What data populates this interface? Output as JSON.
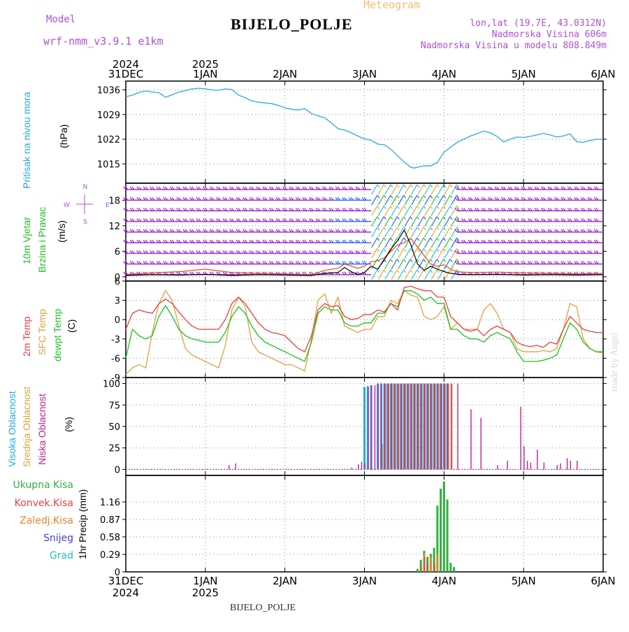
{
  "header": {
    "model_label": "Model",
    "model_name": "wrf-nmm_v3.9.1 e1km",
    "meteogram_label": "Meteogram",
    "station": "BIJELO_POLJE",
    "lonlat": "lon,lat (19.7E, 43.0312N)",
    "altitude": "Nadmorska Visina 606m",
    "model_altitude": "Nadmorska Visina u modelu 808.849m",
    "made_by": "made by Angel",
    "bottom_station": "BIJELO_POLJE"
  },
  "time_axis": {
    "top_years": [
      "2024",
      "2025"
    ],
    "bottom_years": [
      "2024",
      "2025"
    ],
    "days": [
      "31DEC",
      "1JAN",
      "2JAN",
      "3JAN",
      "4JAN",
      "5JAN",
      "6JAN"
    ]
  },
  "colors": {
    "pressure": "#29a9e6",
    "wind_barb": "#a020d0",
    "wind_blue": "#3060ff",
    "wind_green": "#30c030",
    "wind_orange": "#f0a030",
    "wind_cyan": "#20c0e0",
    "wind_speed_line": "#000000",
    "gust": "#e05020",
    "temp_2m": "#e84040",
    "temp_sfc": "#e0a040",
    "temp_dew": "#20c020",
    "cloud_high": "#29a9e6",
    "cloud_mid": "#e0a040",
    "cloud_low": "#c02090",
    "precip_total": "#30b040",
    "precip_conv": "#e84040",
    "precip_strat": "#f08030",
    "precip_snow": "#4040d0",
    "precip_hail": "#20c0c0",
    "grid": "#8a8a8a"
  },
  "chart_data": [
    {
      "type": "line",
      "panel": "pressure",
      "ylabel_main": "Pritisak na nivou mora",
      "unit": "(hPa)",
      "yticks": [
        1015,
        1022,
        1029,
        1036
      ],
      "ylim": [
        1009.5,
        1038.5
      ],
      "grid": true,
      "series": [
        {
          "name": "",
          "x": [
            0,
            2,
            4,
            6,
            8,
            10,
            12,
            14,
            16,
            18,
            20,
            22,
            24,
            26,
            28,
            30,
            32,
            34,
            36,
            38,
            40,
            42,
            44,
            46,
            48,
            50,
            52,
            54,
            56,
            58,
            60,
            62,
            64,
            66,
            68,
            70,
            72,
            74,
            76,
            78,
            80,
            82,
            84,
            86,
            87,
            88,
            90,
            92,
            94,
            96,
            98,
            100,
            102,
            104,
            106,
            108,
            110,
            112,
            114,
            116,
            118,
            120,
            122,
            124,
            126,
            128,
            130,
            132,
            134,
            136,
            138,
            140,
            142,
            144
          ],
          "y": [
            1034.1,
            1034.5,
            1035.3,
            1035.7,
            1035.4,
            1035.2,
            1033.9,
            1034.6,
            1035.4,
            1035.8,
            1036.3,
            1036.5,
            1036.3,
            1036.0,
            1035.9,
            1036.3,
            1036.1,
            1034.5,
            1033.8,
            1032.9,
            1032.5,
            1032.3,
            1032.1,
            1031.6,
            1030.9,
            1030.5,
            1030.3,
            1030.7,
            1029.3,
            1028.6,
            1028.1,
            1026.6,
            1025.0,
            1024.6,
            1023.8,
            1022.9,
            1022.1,
            1021.7,
            1020.6,
            1020.4,
            1019.1,
            1017.3,
            1015.5,
            1014.0,
            1013.8,
            1014.0,
            1014.4,
            1014.4,
            1015.4,
            1018.3,
            1019.7,
            1021.1,
            1022.0,
            1022.9,
            1023.6,
            1024.3,
            1023.8,
            1022.8,
            1021.2,
            1022.0,
            1022.6,
            1022.5,
            1022.8,
            1023.2,
            1023.6,
            1023.2,
            1022.6,
            1022.9,
            1023.5,
            1021.3,
            1021.1,
            1021.6,
            1022.0,
            1022.0
          ]
        }
      ]
    },
    {
      "type": "line",
      "panel": "wind",
      "ylabel_main": "10m Vjetar",
      "ylabel_sub": "Brzina i Pravac",
      "unit": "(m/s)",
      "compass": {
        "n": "N",
        "s": "S",
        "w": "W",
        "e": "E"
      },
      "yticks": [
        0,
        6,
        12,
        18
      ],
      "ylim": [
        -1,
        22
      ],
      "grid": true,
      "barb_rows": [
        0.5,
        3,
        5.5,
        8,
        10.5,
        13,
        15.5,
        18,
        20.5
      ],
      "series": [
        {
          "name": "",
          "x": [
            0,
            8,
            16,
            24,
            32,
            40,
            48,
            56,
            60,
            64,
            66,
            68,
            70,
            72,
            74,
            76,
            78,
            80,
            82,
            84,
            86,
            88,
            90,
            92,
            94,
            96,
            98,
            100,
            104,
            112,
            120,
            128,
            136,
            144
          ],
          "y": [
            0.3,
            0.5,
            0.4,
            0.6,
            0.3,
            0.5,
            0.4,
            0.3,
            0.8,
            1.0,
            2.2,
            1.2,
            0.5,
            1.0,
            2.5,
            1.8,
            4.0,
            6.5,
            8.5,
            11.0,
            7.5,
            3.0,
            1.5,
            2.5,
            1.8,
            1.2,
            0.8,
            0.6,
            0.5,
            0.6,
            0.4,
            0.5,
            0.4,
            0.5
          ]
        },
        {
          "name": "",
          "x": [
            0,
            8,
            16,
            24,
            32,
            40,
            48,
            56,
            60,
            64,
            66,
            68,
            70,
            72,
            74,
            76,
            78,
            80,
            82,
            84,
            86,
            88,
            90,
            92,
            94,
            96,
            98,
            100,
            104,
            112,
            120,
            128,
            136,
            144
          ],
          "y": [
            0.6,
            0.9,
            1.2,
            1.8,
            1.0,
            0.8,
            0.7,
            0.5,
            1.5,
            2.0,
            3.0,
            2.5,
            2.0,
            2.5,
            3.5,
            3.8,
            4.5,
            6.0,
            7.5,
            8.0,
            9.0,
            7.0,
            5.0,
            3.0,
            2.5,
            2.8,
            1.8,
            1.2,
            1.0,
            1.1,
            0.9,
            0.8,
            0.7,
            0.8
          ]
        }
      ]
    },
    {
      "type": "line",
      "panel": "temperature",
      "ylabel_t2": "2m Temp",
      "ylabel_sfc": "SFC Temp",
      "ylabel_dew": "dewpt Temp",
      "unit": "(C)",
      "yticks": [
        -9,
        -6,
        -3,
        0,
        3,
        6
      ],
      "ylim": [
        -9,
        6
      ],
      "grid": true,
      "series": [
        {
          "name": "",
          "x": [
            0,
            2,
            4,
            6,
            8,
            10,
            12,
            14,
            16,
            18,
            20,
            22,
            24,
            26,
            28,
            30,
            32,
            34,
            36,
            38,
            40,
            42,
            44,
            46,
            48,
            50,
            52,
            54,
            56,
            58,
            60,
            62,
            64,
            66,
            68,
            70,
            72,
            74,
            76,
            78,
            80,
            82,
            84,
            86,
            88,
            90,
            92,
            94,
            96,
            98,
            100,
            102,
            104,
            106,
            108,
            110,
            112,
            114,
            116,
            118,
            120,
            122,
            124,
            126,
            128,
            130,
            132,
            134,
            136,
            138,
            140,
            142,
            144
          ],
          "y": [
            -1.5,
            1.0,
            1.5,
            1.2,
            1.0,
            2.5,
            3.2,
            2.5,
            1.2,
            0.0,
            -1.0,
            -1.5,
            -1.5,
            -1.5,
            -1.5,
            0.0,
            2.5,
            3.5,
            2.5,
            1.0,
            -0.5,
            -1.5,
            -2.0,
            -2.2,
            -2.5,
            -3.5,
            -4.5,
            -5.0,
            -2.5,
            1.5,
            2.5,
            2.0,
            2.2,
            0.5,
            0.0,
            0.2,
            0.8,
            0.8,
            1.5,
            1.2,
            2.5,
            1.5,
            5.0,
            5.2,
            4.8,
            4.5,
            4.5,
            3.5,
            3.5,
            0.5,
            -0.5,
            -1.5,
            -1.8,
            -1.5,
            -2.5,
            -1.5,
            -1.0,
            -1.5,
            -2.0,
            -3.5,
            -4.0,
            -4.2,
            -4.0,
            -4.3,
            -3.5,
            -3.8,
            -1.5,
            0.5,
            -0.5,
            -1.5,
            -1.8,
            -2.0,
            -2.0
          ]
        },
        {
          "name": "",
          "x": [
            0,
            2,
            4,
            6,
            8,
            10,
            12,
            14,
            16,
            18,
            20,
            22,
            24,
            26,
            28,
            30,
            32,
            34,
            36,
            38,
            40,
            42,
            44,
            46,
            48,
            50,
            52,
            54,
            56,
            58,
            60,
            62,
            64,
            66,
            68,
            70,
            72,
            74,
            76,
            78,
            80,
            82,
            84,
            86,
            88,
            90,
            92,
            94,
            96,
            98,
            100,
            102,
            104,
            106,
            108,
            110,
            112,
            114,
            116,
            118,
            120,
            122,
            124,
            126,
            128,
            130,
            132,
            134,
            136,
            138,
            140,
            142,
            144
          ],
          "y": [
            -8.5,
            -7.5,
            -7.0,
            -7.5,
            -2.0,
            2.5,
            4.5,
            3.0,
            -1.0,
            -4.5,
            -5.5,
            -6.0,
            -6.5,
            -7.0,
            -7.5,
            -4.0,
            1.5,
            3.5,
            2.0,
            -3.5,
            -5.0,
            -5.5,
            -6.0,
            -6.5,
            -7.0,
            -7.0,
            -7.5,
            -8.0,
            -3.0,
            3.0,
            4.0,
            1.0,
            3.5,
            -1.0,
            -1.5,
            -2.0,
            -1.5,
            -1.5,
            0.5,
            0.5,
            3.0,
            2.5,
            4.5,
            3.8,
            3.5,
            0.5,
            0.0,
            0.5,
            2.0,
            -1.5,
            -0.5,
            -1.5,
            -1.5,
            -1.5,
            1.5,
            2.5,
            1.0,
            -1.5,
            -2.0,
            -4.5,
            -5.0,
            -5.0,
            -5.0,
            -4.8,
            -5.0,
            -4.5,
            -1.5,
            2.5,
            2.0,
            -3.0,
            -4.5,
            -5.0,
            -5.2
          ]
        },
        {
          "name": "",
          "x": [
            0,
            2,
            4,
            6,
            8,
            10,
            12,
            14,
            16,
            18,
            20,
            22,
            24,
            26,
            28,
            30,
            32,
            34,
            36,
            38,
            40,
            42,
            44,
            46,
            48,
            50,
            52,
            54,
            56,
            58,
            60,
            62,
            64,
            66,
            68,
            70,
            72,
            74,
            76,
            78,
            80,
            82,
            84,
            86,
            88,
            90,
            92,
            94,
            96,
            98,
            100,
            102,
            104,
            106,
            108,
            110,
            112,
            114,
            116,
            118,
            120,
            122,
            124,
            126,
            128,
            130,
            132,
            134,
            136,
            138,
            140,
            142,
            144
          ],
          "y": [
            -6.0,
            -1.5,
            -2.5,
            -3.0,
            -2.5,
            0.5,
            2.2,
            0.5,
            -1.5,
            -2.5,
            -3.0,
            -3.2,
            -3.5,
            -3.5,
            -3.5,
            -2.0,
            0.5,
            2.0,
            1.0,
            -1.0,
            -2.5,
            -3.5,
            -4.0,
            -4.5,
            -5.0,
            -5.5,
            -6.0,
            -6.5,
            -3.5,
            1.0,
            2.0,
            1.5,
            1.5,
            -0.5,
            -1.0,
            -1.0,
            -0.5,
            -0.5,
            1.0,
            1.0,
            2.5,
            2.0,
            4.5,
            4.5,
            4.0,
            3.0,
            3.5,
            2.5,
            2.5,
            -1.5,
            -1.5,
            -2.5,
            -3.0,
            -3.0,
            -3.5,
            -2.5,
            -2.0,
            -2.5,
            -3.0,
            -5.0,
            -6.5,
            -6.5,
            -6.5,
            -6.3,
            -6.0,
            -5.5,
            -3.0,
            -0.5,
            -1.5,
            -3.5,
            -4.5,
            -5.0,
            -5.0
          ]
        }
      ]
    },
    {
      "type": "bar",
      "panel": "cloud",
      "ylabel_high": "Visoka Oblacnost",
      "ylabel_mid": "Srednja Oblacnost",
      "ylabel_low": "Niska Oblacnost",
      "unit": "(%)",
      "yticks": [
        0,
        25,
        50,
        75,
        100
      ],
      "ylim": [
        -7,
        107
      ],
      "grid": true,
      "high": {
        "x": [
          72,
          73,
          74,
          76,
          77,
          78,
          79,
          80,
          81,
          82,
          83,
          84,
          85,
          86,
          87,
          88,
          89,
          90,
          91,
          92,
          93,
          94,
          95,
          96,
          97
        ],
        "values": [
          96,
          97,
          98,
          100,
          100,
          100,
          100,
          100,
          100,
          100,
          100,
          100,
          100,
          100,
          100,
          100,
          100,
          100,
          100,
          100,
          100,
          100,
          100,
          100,
          100
        ]
      },
      "mid": {
        "x": [
          77,
          78,
          79,
          80,
          81,
          82,
          83,
          84,
          85,
          86,
          87,
          88,
          89,
          90,
          91,
          92,
          93,
          94,
          95,
          96,
          97,
          98
        ],
        "values": [
          30,
          100,
          100,
          100,
          100,
          100,
          100,
          100,
          100,
          100,
          100,
          100,
          100,
          100,
          100,
          100,
          100,
          100,
          100,
          100,
          100,
          100
        ]
      },
      "low": {
        "x": [
          31,
          33,
          68,
          70,
          71,
          72,
          73,
          74,
          75,
          76,
          77,
          78,
          79,
          80,
          81,
          82,
          83,
          84,
          85,
          86,
          87,
          88,
          89,
          90,
          91,
          92,
          93,
          94,
          95,
          96,
          97,
          98,
          100,
          104,
          107,
          112,
          115,
          119,
          120,
          121,
          122,
          124,
          126,
          130,
          131,
          133,
          134,
          136
        ],
        "values": [
          5,
          7,
          2,
          6,
          9,
          7,
          96,
          98,
          98,
          100,
          100,
          100,
          100,
          100,
          100,
          100,
          100,
          100,
          100,
          100,
          100,
          100,
          100,
          100,
          100,
          100,
          100,
          100,
          100,
          100,
          100,
          100,
          100,
          70,
          60,
          5,
          10,
          73,
          27,
          10,
          8,
          23,
          8,
          5,
          7,
          13,
          10,
          10
        ]
      }
    },
    {
      "type": "bar",
      "panel": "precip",
      "labels": {
        "total": "Ukupna Kisa",
        "conv": "Konvek.Kisa",
        "strat": "Zaledj.Kisa",
        "snow": "Snijeg",
        "hail": "Grad"
      },
      "unit": "1hr Precip (mm)",
      "yticks": [
        0,
        0.29,
        0.58,
        0.87,
        1.16
      ],
      "ylim": [
        0,
        1.6
      ],
      "grid": true,
      "total": {
        "x": [
          88,
          89,
          90,
          91,
          92,
          93,
          94,
          95,
          96,
          97,
          98,
          99
        ],
        "values": [
          0.05,
          0.2,
          0.35,
          0.25,
          0.3,
          0.4,
          1.1,
          1.38,
          1.5,
          1.2,
          0.15,
          0.08
        ]
      },
      "conv": {
        "x": [
          89,
          90,
          91,
          93
        ],
        "values": [
          0.1,
          0.25,
          0.15,
          0.15
        ]
      },
      "strat": {
        "x": [
          90,
          92,
          94
        ],
        "values": [
          0.3,
          0.25,
          0.3
        ]
      }
    }
  ]
}
